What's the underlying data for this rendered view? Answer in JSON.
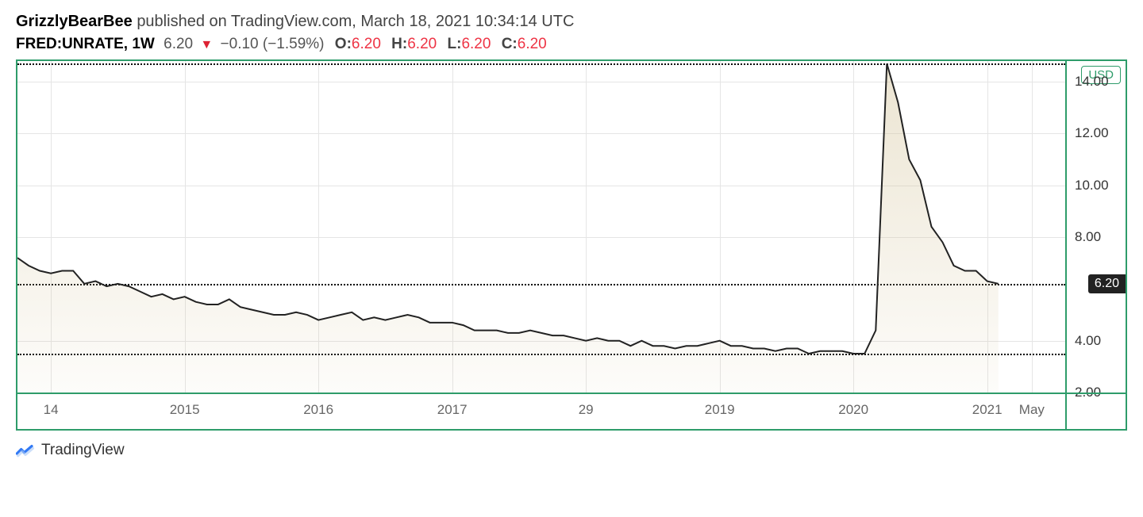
{
  "header": {
    "author": "GrizzlyBearBee",
    "published_text": "published on TradingView.com, March 18, 2021 10:34:14 UTC",
    "symbol": "FRED:UNRATE, 1W",
    "last_price": "6.20",
    "arrow": "▼",
    "change": "−0.10 (−1.59%)",
    "ohlc": {
      "O": "6.20",
      "H": "6.20",
      "L": "6.20",
      "C": "6.20"
    }
  },
  "chart": {
    "type": "area",
    "x_domain": [
      "2013-10",
      "2021-08"
    ],
    "y_domain": [
      2.0,
      14.8
    ],
    "y_ticks": [
      2.0,
      4.0,
      8.0,
      10.0,
      12.0,
      14.0
    ],
    "x_ticks": [
      {
        "label": "14",
        "pos": "2014-01"
      },
      {
        "label": "2015",
        "pos": "2015-01"
      },
      {
        "label": "2016",
        "pos": "2016-01"
      },
      {
        "label": "2017",
        "pos": "2017-01"
      },
      {
        "label": "29",
        "pos": "2018-01"
      },
      {
        "label": "2019",
        "pos": "2019-01"
      },
      {
        "label": "2020",
        "pos": "2020-01"
      },
      {
        "label": "2021",
        "pos": "2021-01"
      },
      {
        "label": "May",
        "pos": "2021-05"
      }
    ],
    "dotted_lines": [
      3.5,
      6.2,
      14.7
    ],
    "price_flag": "6.20",
    "currency_badge": "USD",
    "line_color": "#222222",
    "fill_color": "#d4c49a",
    "fill_opacity": 0.45,
    "grid_color": "#e5e5e5",
    "border_color": "#2e9c6a",
    "background_color": "#ffffff",
    "data": [
      {
        "t": "2013-10",
        "v": 7.2
      },
      {
        "t": "2013-11",
        "v": 6.9
      },
      {
        "t": "2013-12",
        "v": 6.7
      },
      {
        "t": "2014-01",
        "v": 6.6
      },
      {
        "t": "2014-02",
        "v": 6.7
      },
      {
        "t": "2014-03",
        "v": 6.7
      },
      {
        "t": "2014-04",
        "v": 6.2
      },
      {
        "t": "2014-05",
        "v": 6.3
      },
      {
        "t": "2014-06",
        "v": 6.1
      },
      {
        "t": "2014-07",
        "v": 6.2
      },
      {
        "t": "2014-08",
        "v": 6.1
      },
      {
        "t": "2014-09",
        "v": 5.9
      },
      {
        "t": "2014-10",
        "v": 5.7
      },
      {
        "t": "2014-11",
        "v": 5.8
      },
      {
        "t": "2014-12",
        "v": 5.6
      },
      {
        "t": "2015-01",
        "v": 5.7
      },
      {
        "t": "2015-02",
        "v": 5.5
      },
      {
        "t": "2015-03",
        "v": 5.4
      },
      {
        "t": "2015-04",
        "v": 5.4
      },
      {
        "t": "2015-05",
        "v": 5.6
      },
      {
        "t": "2015-06",
        "v": 5.3
      },
      {
        "t": "2015-07",
        "v": 5.2
      },
      {
        "t": "2015-08",
        "v": 5.1
      },
      {
        "t": "2015-09",
        "v": 5.0
      },
      {
        "t": "2015-10",
        "v": 5.0
      },
      {
        "t": "2015-11",
        "v": 5.1
      },
      {
        "t": "2015-12",
        "v": 5.0
      },
      {
        "t": "2016-01",
        "v": 4.8
      },
      {
        "t": "2016-02",
        "v": 4.9
      },
      {
        "t": "2016-03",
        "v": 5.0
      },
      {
        "t": "2016-04",
        "v": 5.1
      },
      {
        "t": "2016-05",
        "v": 4.8
      },
      {
        "t": "2016-06",
        "v": 4.9
      },
      {
        "t": "2016-07",
        "v": 4.8
      },
      {
        "t": "2016-08",
        "v": 4.9
      },
      {
        "t": "2016-09",
        "v": 5.0
      },
      {
        "t": "2016-10",
        "v": 4.9
      },
      {
        "t": "2016-11",
        "v": 4.7
      },
      {
        "t": "2016-12",
        "v": 4.7
      },
      {
        "t": "2017-01",
        "v": 4.7
      },
      {
        "t": "2017-02",
        "v": 4.6
      },
      {
        "t": "2017-03",
        "v": 4.4
      },
      {
        "t": "2017-04",
        "v": 4.4
      },
      {
        "t": "2017-05",
        "v": 4.4
      },
      {
        "t": "2017-06",
        "v": 4.3
      },
      {
        "t": "2017-07",
        "v": 4.3
      },
      {
        "t": "2017-08",
        "v": 4.4
      },
      {
        "t": "2017-09",
        "v": 4.3
      },
      {
        "t": "2017-10",
        "v": 4.2
      },
      {
        "t": "2017-11",
        "v": 4.2
      },
      {
        "t": "2017-12",
        "v": 4.1
      },
      {
        "t": "2018-01",
        "v": 4.0
      },
      {
        "t": "2018-02",
        "v": 4.1
      },
      {
        "t": "2018-03",
        "v": 4.0
      },
      {
        "t": "2018-04",
        "v": 4.0
      },
      {
        "t": "2018-05",
        "v": 3.8
      },
      {
        "t": "2018-06",
        "v": 4.0
      },
      {
        "t": "2018-07",
        "v": 3.8
      },
      {
        "t": "2018-08",
        "v": 3.8
      },
      {
        "t": "2018-09",
        "v": 3.7
      },
      {
        "t": "2018-10",
        "v": 3.8
      },
      {
        "t": "2018-11",
        "v": 3.8
      },
      {
        "t": "2018-12",
        "v": 3.9
      },
      {
        "t": "2019-01",
        "v": 4.0
      },
      {
        "t": "2019-02",
        "v": 3.8
      },
      {
        "t": "2019-03",
        "v": 3.8
      },
      {
        "t": "2019-04",
        "v": 3.7
      },
      {
        "t": "2019-05",
        "v": 3.7
      },
      {
        "t": "2019-06",
        "v": 3.6
      },
      {
        "t": "2019-07",
        "v": 3.7
      },
      {
        "t": "2019-08",
        "v": 3.7
      },
      {
        "t": "2019-09",
        "v": 3.5
      },
      {
        "t": "2019-10",
        "v": 3.6
      },
      {
        "t": "2019-11",
        "v": 3.6
      },
      {
        "t": "2019-12",
        "v": 3.6
      },
      {
        "t": "2020-01",
        "v": 3.5
      },
      {
        "t": "2020-02",
        "v": 3.5
      },
      {
        "t": "2020-03",
        "v": 4.4
      },
      {
        "t": "2020-04",
        "v": 14.7
      },
      {
        "t": "2020-05",
        "v": 13.2
      },
      {
        "t": "2020-06",
        "v": 11.0
      },
      {
        "t": "2020-07",
        "v": 10.2
      },
      {
        "t": "2020-08",
        "v": 8.4
      },
      {
        "t": "2020-09",
        "v": 7.8
      },
      {
        "t": "2020-10",
        "v": 6.9
      },
      {
        "t": "2020-11",
        "v": 6.7
      },
      {
        "t": "2020-12",
        "v": 6.7
      },
      {
        "t": "2021-01",
        "v": 6.3
      },
      {
        "t": "2021-02",
        "v": 6.2
      }
    ]
  },
  "footer": {
    "brand": "TradingView"
  }
}
